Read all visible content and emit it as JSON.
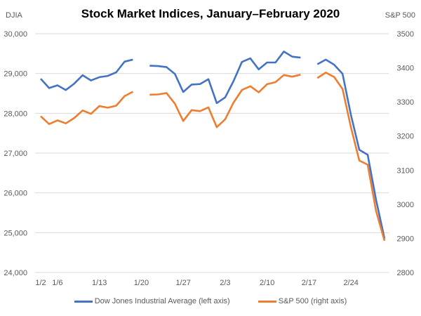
{
  "chart_data": {
    "type": "line",
    "title": "Stock Market Indices, January–February 2020",
    "ylabel_left": "DJIA",
    "ylabel_right": "S&P 500",
    "ylim_left": [
      24000,
      30000
    ],
    "ylim_right": [
      2800,
      3500
    ],
    "yticks_left": [
      "24,000",
      "25,000",
      "26,000",
      "27,000",
      "28,000",
      "29,000",
      "30,000"
    ],
    "yticks_right": [
      "2800",
      "2900",
      "3000",
      "3100",
      "3200",
      "3300",
      "3400",
      "3500"
    ],
    "grid": true,
    "legend": "bottom",
    "x": [
      "1/2",
      "1/3",
      "1/6",
      "1/7",
      "1/8",
      "1/9",
      "1/10",
      "1/13",
      "1/14",
      "1/15",
      "1/16",
      "1/17",
      "1/20",
      "1/21",
      "1/22",
      "1/23",
      "1/24",
      "1/27",
      "1/28",
      "1/29",
      "1/30",
      "1/31",
      "2/3",
      "2/4",
      "2/5",
      "2/6",
      "2/7",
      "2/10",
      "2/11",
      "2/12",
      "2/13",
      "2/14",
      "2/17",
      "2/18",
      "2/19",
      "2/20",
      "2/21",
      "2/24",
      "2/25",
      "2/26",
      "2/27",
      "2/28"
    ],
    "xtick_labels": [
      "1/2",
      "1/6",
      "1/13",
      "1/20",
      "1/27",
      "2/3",
      "2/10",
      "2/17",
      "2/24"
    ],
    "series": [
      {
        "name": "Dow Jones Industrial Average (left axis)",
        "axis": "left",
        "color": "#4472C4",
        "values": [
          28869,
          28635,
          28703,
          28584,
          28745,
          28957,
          28824,
          28907,
          28940,
          29030,
          29298,
          29348,
          null,
          29196,
          29186,
          29160,
          28990,
          28536,
          28723,
          28734,
          28859,
          28256,
          28400,
          28808,
          29291,
          29380,
          29103,
          29277,
          29276,
          29551,
          29423,
          29398,
          null,
          29232,
          29348,
          29220,
          28992,
          27961,
          27081,
          26958,
          25820,
          24850
        ]
      },
      {
        "name": "S&P 500 (right axis)",
        "axis": "right",
        "color": "#ED7D31",
        "values": [
          3258,
          3235,
          3246,
          3237,
          3253,
          3275,
          3265,
          3288,
          3283,
          3289,
          3317,
          3330,
          null,
          3321,
          3322,
          3326,
          3295,
          3244,
          3276,
          3273,
          3284,
          3226,
          3249,
          3298,
          3335,
          3346,
          3328,
          3352,
          3358,
          3379,
          3374,
          3380,
          null,
          3370,
          3386,
          3373,
          3338,
          3226,
          3128,
          3116,
          2980,
          2893
        ]
      }
    ]
  }
}
